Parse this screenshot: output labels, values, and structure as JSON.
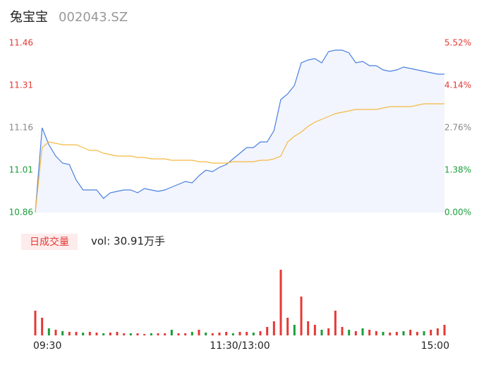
{
  "header": {
    "name": "兔宝宝",
    "code": "002043.SZ"
  },
  "chart_data": [
    {
      "type": "line",
      "x": [
        0,
        4,
        8,
        12,
        16,
        20,
        24,
        28,
        32,
        36,
        40,
        44,
        48,
        52,
        56,
        60,
        64,
        68,
        72,
        76,
        80,
        84,
        88,
        92,
        96,
        100,
        104,
        108,
        112,
        116,
        120,
        124,
        128,
        132,
        136,
        140,
        144,
        148,
        152,
        156,
        160,
        164,
        168,
        172,
        176,
        180,
        184,
        188,
        192,
        196,
        200,
        204,
        208,
        212,
        216,
        220,
        224,
        228,
        232,
        236,
        240
      ],
      "xlim": [
        0,
        240
      ],
      "ylim": [
        10.86,
        11.46
      ],
      "yticks": [
        10.86,
        11.01,
        11.16,
        11.31,
        11.46
      ],
      "ytick_colors": [
        "#1a9e3a",
        "#1a9e3a",
        "#888888",
        "#e53935",
        "#e53935"
      ],
      "y2lim": [
        0,
        5.52
      ],
      "y2ticks": [
        {
          "value": 0,
          "label": "0.00%"
        },
        {
          "value": 1.38,
          "label": "1.38%"
        },
        {
          "value": 2.76,
          "label": "2.76%"
        },
        {
          "value": 4.14,
          "label": "4.14%"
        },
        {
          "value": 5.52,
          "label": "5.52%"
        }
      ],
      "series": [
        {
          "color": "#4a80e0",
          "area": "#f2f5fd",
          "values": [
            10.86,
            11.16,
            11.1,
            11.06,
            11.035,
            11.03,
            10.975,
            10.94,
            10.94,
            10.94,
            10.91,
            10.93,
            10.935,
            10.94,
            10.94,
            10.93,
            10.945,
            10.94,
            10.935,
            10.94,
            10.95,
            10.96,
            10.97,
            10.965,
            10.99,
            11.01,
            11.005,
            11.02,
            11.03,
            11.05,
            11.07,
            11.09,
            11.09,
            11.11,
            11.11,
            11.15,
            11.26,
            11.28,
            11.31,
            11.39,
            11.4,
            11.405,
            11.39,
            11.43,
            11.435,
            11.435,
            11.425,
            11.39,
            11.395,
            11.38,
            11.38,
            11.365,
            11.36,
            11.365,
            11.375,
            11.37,
            11.365,
            11.36,
            11.355,
            11.35,
            11.35
          ]
        },
        {
          "color": "#f5b942",
          "values": [
            10.86,
            11.09,
            11.11,
            11.105,
            11.1,
            11.1,
            11.1,
            11.09,
            11.08,
            11.08,
            11.07,
            11.065,
            11.06,
            11.06,
            11.06,
            11.055,
            11.055,
            11.05,
            11.05,
            11.05,
            11.045,
            11.045,
            11.045,
            11.045,
            11.04,
            11.04,
            11.035,
            11.035,
            11.035,
            11.04,
            11.04,
            11.04,
            11.04,
            11.045,
            11.045,
            11.05,
            11.06,
            11.11,
            11.13,
            11.145,
            11.165,
            11.18,
            11.19,
            11.2,
            11.21,
            11.215,
            11.22,
            11.225,
            11.225,
            11.225,
            11.225,
            11.23,
            11.235,
            11.235,
            11.235,
            11.235,
            11.24,
            11.245,
            11.245,
            11.245,
            11.245
          ]
        }
      ]
    },
    {
      "type": "bar",
      "title": "日成交量",
      "annotation": "vol: 30.91万手",
      "x": [
        0,
        4,
        8,
        12,
        16,
        20,
        24,
        28,
        32,
        36,
        40,
        44,
        48,
        52,
        56,
        60,
        64,
        68,
        72,
        76,
        80,
        84,
        88,
        92,
        96,
        100,
        104,
        108,
        112,
        116,
        120,
        124,
        128,
        132,
        136,
        140,
        144,
        148,
        152,
        156,
        160,
        164,
        168,
        172,
        176,
        180,
        184,
        188,
        192,
        196,
        200,
        204,
        208,
        212,
        216,
        220,
        224,
        228,
        232,
        236,
        240
      ],
      "xlim": [
        0,
        240
      ],
      "xticks": [
        {
          "value": 0,
          "label": "09:30"
        },
        {
          "value": 120,
          "label": "11:30/13:00"
        },
        {
          "value": 240,
          "label": "15:00"
        }
      ],
      "ylim": [
        0,
        100
      ],
      "values": [
        35,
        25,
        10,
        8,
        6,
        5,
        5,
        4,
        5,
        4,
        3,
        4,
        5,
        3,
        3,
        3,
        2,
        3,
        3,
        3,
        8,
        3,
        3,
        5,
        8,
        4,
        3,
        4,
        5,
        3,
        5,
        5,
        4,
        6,
        12,
        20,
        93,
        25,
        15,
        55,
        20,
        15,
        8,
        10,
        35,
        12,
        8,
        6,
        10,
        8,
        6,
        5,
        4,
        5,
        6,
        8,
        5,
        6,
        8,
        10,
        15
      ],
      "bar_colors": [
        "#e53935",
        "#e53935",
        "#1a9e3a",
        "#e53935",
        "#1a9e3a",
        "#e53935",
        "#e53935",
        "#1a9e3a",
        "#e53935",
        "#e53935",
        "#1a9e3a",
        "#e53935",
        "#e53935",
        "#e53935",
        "#1a9e3a",
        "#e53935",
        "#e53935",
        "#1a9e3a",
        "#e53935",
        "#e53935",
        "#1a9e3a",
        "#e53935",
        "#e53935",
        "#1a9e3a",
        "#e53935",
        "#1a9e3a",
        "#e53935",
        "#e53935",
        "#e53935",
        "#1a9e3a",
        "#e53935",
        "#e53935",
        "#1a9e3a",
        "#e53935",
        "#e53935",
        "#e53935",
        "#e53935",
        "#e53935",
        "#1a9e3a",
        "#e53935",
        "#e53935",
        "#e53935",
        "#1a9e3a",
        "#e53935",
        "#e53935",
        "#e53935",
        "#1a9e3a",
        "#e53935",
        "#1a9e3a",
        "#e53935",
        "#e53935",
        "#1a9e3a",
        "#e53935",
        "#e53935",
        "#1a9e3a",
        "#e53935",
        "#e53935",
        "#1a9e3a",
        "#e53935",
        "#e53935",
        "#e53935"
      ]
    }
  ]
}
